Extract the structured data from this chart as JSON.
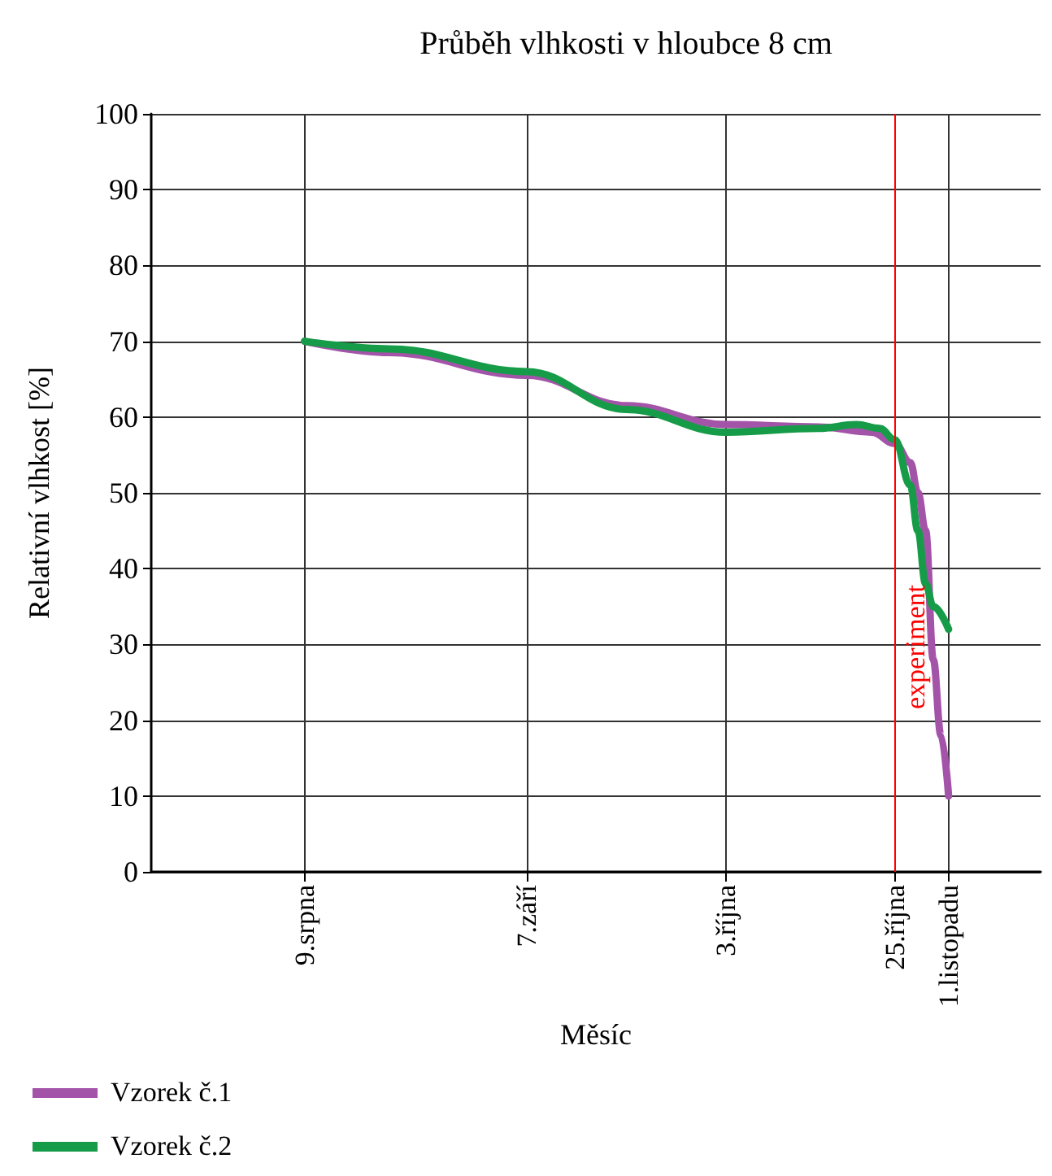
{
  "chart_data": {
    "type": "line",
    "title": "Průběh vlhkosti v hloubce 8 cm",
    "xlabel": "Měsíc",
    "ylabel": "Relativní vlhkost [%]",
    "xlim": [
      "--07-20",
      "--11-13"
    ],
    "xticks": [
      {
        "value": "--08-09",
        "label": "9.srpna"
      },
      {
        "value": "--09-07",
        "label": "7.září"
      },
      {
        "value": "--10-03",
        "label": "3.října"
      },
      {
        "value": "--10-25",
        "label": "25.října"
      },
      {
        "value": "--11-01",
        "label": "1.listopadu"
      }
    ],
    "ylim": [
      0,
      100
    ],
    "yticks": [
      0,
      10,
      20,
      30,
      40,
      50,
      60,
      70,
      80,
      90,
      100
    ],
    "grid": true,
    "legend": "bottom left",
    "marker": "none",
    "line_style": "solid",
    "ref_lines": [
      {
        "axis": "x",
        "value": "--10-25",
        "label": "experiment",
        "color": "#ff0000"
      }
    ],
    "series": [
      {
        "name": "Vzorek č.1",
        "color": "#a454a8",
        "x": [
          "--08-09",
          "--08-20",
          "--09-07",
          "--09-20",
          "--10-03",
          "--10-15",
          "--10-22",
          "--10-25",
          "--10-27",
          "--10-28",
          "--10-29",
          "--10-30",
          "--10-31",
          "--11-01"
        ],
        "values": [
          70,
          68.5,
          65.5,
          61.5,
          59,
          58.7,
          58,
          56.5,
          54,
          50,
          45,
          28,
          18,
          10
        ]
      },
      {
        "name": "Vzorek č.2",
        "color": "#169c48",
        "x": [
          "--08-09",
          "--08-20",
          "--09-07",
          "--09-20",
          "--10-03",
          "--10-15",
          "--10-20",
          "--10-23",
          "--10-25",
          "--10-27",
          "--10-28",
          "--10-29",
          "--10-30",
          "--11-01"
        ],
        "values": [
          70,
          69,
          66,
          61,
          58,
          58.5,
          59,
          58.5,
          57,
          51,
          45,
          38,
          35,
          32
        ]
      }
    ]
  }
}
